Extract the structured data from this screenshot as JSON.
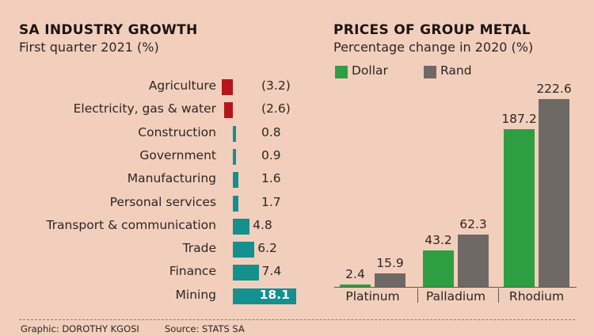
{
  "left": {
    "title": "SA INDUSTRY GROWTH",
    "subtitle": "First quarter 2021 (%)"
  },
  "right": {
    "title": "PRICES OF GROUP METAL",
    "subtitle": "Percentage change in 2020 (%)",
    "legend": [
      {
        "label": "Dollar",
        "color": "#2e9e42"
      },
      {
        "label": "Rand",
        "color": "#6f6965"
      }
    ]
  },
  "footer": {
    "credit": "Graphic: DOROTHY KGOSI",
    "source": "Source: STATS SA"
  },
  "colors": {
    "negative": "#b5161a",
    "positive": "#14908e",
    "background": "#f2cfbc"
  },
  "chart_data": [
    {
      "type": "bar",
      "orientation": "horizontal",
      "title": "SA INDUSTRY GROWTH",
      "subtitle": "First quarter 2021 (%)",
      "categories": [
        "Agriculture",
        "Electricity, gas & water",
        "Construction",
        "Government",
        "Manufacturing",
        "Personal services",
        "Transport & communication",
        "Trade",
        "Finance",
        "Mining"
      ],
      "values": [
        -3.2,
        -2.6,
        0.8,
        0.9,
        1.6,
        1.7,
        4.8,
        6.2,
        7.4,
        18.1
      ],
      "value_labels": [
        "(3.2)",
        "(2.6)",
        "0.8",
        "0.9",
        "1.6",
        "1.7",
        "4.8",
        "6.2",
        "7.4",
        "18.1"
      ],
      "xlabel": "",
      "ylabel": "",
      "xlim": [
        -3.2,
        18.1
      ],
      "grid": false
    },
    {
      "type": "bar",
      "orientation": "vertical",
      "title": "PRICES OF GROUP METAL",
      "subtitle": "Percentage change in 2020 (%)",
      "categories": [
        "Platinum",
        "Palladium",
        "Rhodium"
      ],
      "series": [
        {
          "name": "Dollar",
          "values": [
            2.4,
            43.2,
            187.2
          ],
          "labels": [
            "2.4",
            "43.2",
            "187.2"
          ]
        },
        {
          "name": "Rand",
          "values": [
            15.9,
            62.3,
            222.6
          ],
          "labels": [
            "15.9",
            "62.3",
            "222.6"
          ]
        }
      ],
      "xlabel": "",
      "ylabel": "",
      "ylim": [
        0,
        222.6
      ],
      "legend": "top-left",
      "grid": false
    }
  ]
}
